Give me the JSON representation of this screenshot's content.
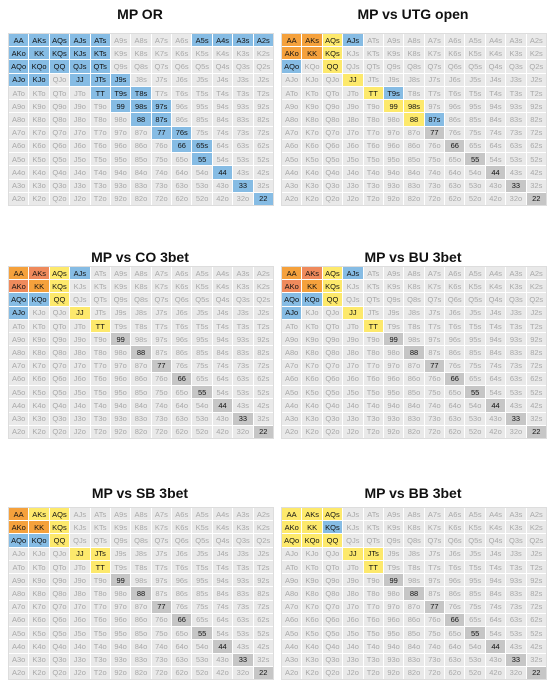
{
  "hands": [
    [
      "AA",
      "AKs",
      "AQs",
      "AJs",
      "ATs",
      "A9s",
      "A8s",
      "A7s",
      "A6s",
      "A5s",
      "A4s",
      "A3s",
      "A2s"
    ],
    [
      "AKo",
      "KK",
      "KQs",
      "KJs",
      "KTs",
      "K9s",
      "K8s",
      "K7s",
      "K6s",
      "K5s",
      "K4s",
      "K3s",
      "K2s"
    ],
    [
      "AQo",
      "KQo",
      "QQ",
      "QJs",
      "QTs",
      "Q9s",
      "Q8s",
      "Q7s",
      "Q6s",
      "Q5s",
      "Q4s",
      "Q3s",
      "Q2s"
    ],
    [
      "AJo",
      "KJo",
      "QJo",
      "JJ",
      "JTs",
      "J9s",
      "J8s",
      "J7s",
      "J6s",
      "J5s",
      "J4s",
      "J3s",
      "J2s"
    ],
    [
      "ATo",
      "KTo",
      "QTo",
      "JTo",
      "TT",
      "T9s",
      "T8s",
      "T7s",
      "T6s",
      "T5s",
      "T4s",
      "T3s",
      "T2s"
    ],
    [
      "A9o",
      "K9o",
      "Q9o",
      "J9o",
      "T9o",
      "99",
      "98s",
      "97s",
      "96s",
      "95s",
      "94s",
      "93s",
      "92s"
    ],
    [
      "A8o",
      "K8o",
      "Q8o",
      "J8o",
      "T8o",
      "98o",
      "88",
      "87s",
      "86s",
      "85s",
      "84s",
      "83s",
      "82s"
    ],
    [
      "A7o",
      "K7o",
      "Q7o",
      "J7o",
      "T7o",
      "97o",
      "87o",
      "77",
      "76s",
      "75s",
      "74s",
      "73s",
      "72s"
    ],
    [
      "A6o",
      "K6o",
      "Q6o",
      "J6o",
      "T6o",
      "96o",
      "86o",
      "76o",
      "66",
      "65s",
      "64s",
      "63s",
      "62s"
    ],
    [
      "A5o",
      "K5o",
      "Q5o",
      "J5o",
      "T5o",
      "95o",
      "85o",
      "75o",
      "65o",
      "55",
      "54s",
      "53s",
      "52s"
    ],
    [
      "A4o",
      "K4o",
      "Q4o",
      "J4o",
      "T4o",
      "94o",
      "84o",
      "74o",
      "64o",
      "54o",
      "44",
      "43s",
      "42s"
    ],
    [
      "A3o",
      "K3o",
      "Q3o",
      "J3o",
      "T3o",
      "93o",
      "83o",
      "73o",
      "63o",
      "53o",
      "43o",
      "33",
      "32s"
    ],
    [
      "A2o",
      "K2o",
      "Q2o",
      "J2o",
      "T2o",
      "92o",
      "82o",
      "72o",
      "62o",
      "52o",
      "42o",
      "32o",
      "22"
    ]
  ],
  "palette": {
    "b": "#86bce4",
    "o": "#f5a13c",
    "r": "#ef8a5c",
    "y": "#fde96c",
    "g": "#c6c6c6",
    ".": "#e9e9e9"
  },
  "charts": [
    {
      "title": "MP OR",
      "cells": [
        "bbbbb....bbbb",
        "bbbbb........",
        "bbbbb........",
        "bb.bbb.......",
        "....bbb......",
        ".....bbb.....",
        "......bb.....",
        ".......bb....",
        "........bb...",
        ".........b...",
        "..........b..",
        "...........b.",
        "............b"
      ]
    },
    {
      "title": "MP vs UTG open",
      "cells": [
        "ooyb.........",
        "ooy..........",
        "b.y..........",
        "...y.........",
        "....yb.......",
        ".....yy......",
        "......yb.....",
        ".......g.....",
        "........g....",
        ".........g...",
        "..........g..",
        "...........g.",
        "............g"
      ]
    },
    {
      "title": "MP vs CO 3bet",
      "cells": [
        "oryb.........",
        "roy..........",
        "bby..........",
        "b..y.........",
        "....y........",
        ".....g.......",
        "......g......",
        ".......g.....",
        "........g....",
        ".........g...",
        "..........g..",
        "...........g.",
        "............g"
      ]
    },
    {
      "title": "MP vs BU 3bet",
      "cells": [
        "oryb.........",
        "roy..........",
        "bby..........",
        "b..y.........",
        "....y........",
        ".....g.......",
        "......g......",
        ".......g.....",
        "........g....",
        ".........g...",
        "..........g..",
        "...........g.",
        "............g"
      ]
    },
    {
      "title": "MP vs SB 3bet",
      "cells": [
        "oyy..........",
        "ooy..........",
        "bby..........",
        "...yy........",
        "....y........",
        ".....g.......",
        "......g......",
        ".......g.....",
        "........g....",
        ".........g...",
        "..........g..",
        "...........g.",
        "............g"
      ]
    },
    {
      "title": "MP vs BB 3bet",
      "cells": [
        "yyy..........",
        "yyb..........",
        "yyy..........",
        "...yy........",
        "....y........",
        ".....g.......",
        "......g......",
        ".......g.....",
        "........g....",
        ".........g...",
        "..........g..",
        "...........g.",
        "............g"
      ]
    }
  ]
}
